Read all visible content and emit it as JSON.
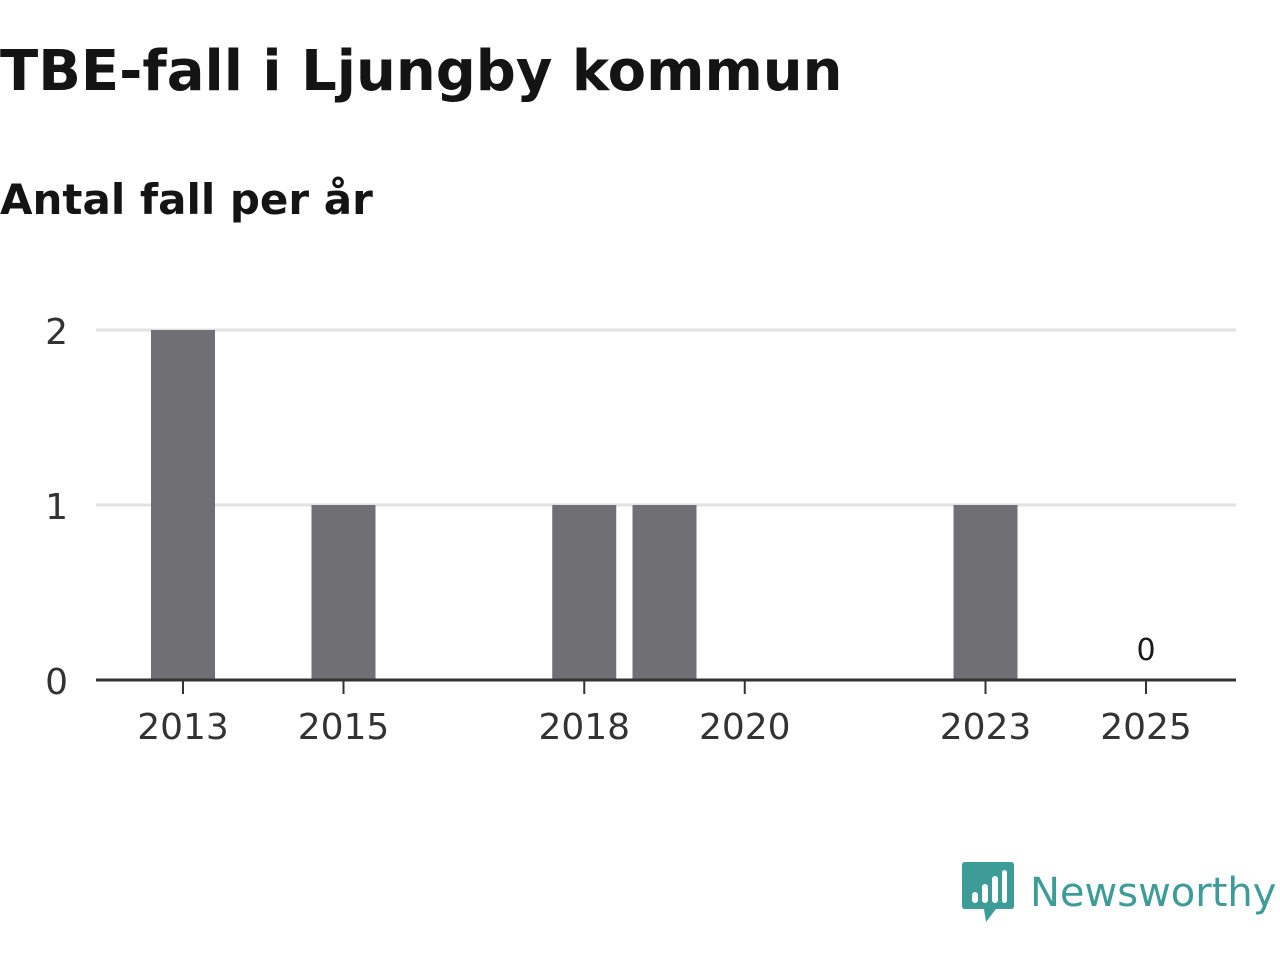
{
  "title": "TBE-fall i Ljungby kommun",
  "subtitle": "Antal fall per år",
  "brand": {
    "name": "Newsworthy",
    "icon": "newsworthy-logo-icon",
    "color": "#3d9c97"
  },
  "colors": {
    "bar": "#706f74",
    "grid": "#e2e2e2",
    "axis": "#333333",
    "text": "#333333",
    "title": "#141414"
  },
  "chart_data": {
    "type": "bar",
    "title": "TBE-fall i Ljungby kommun",
    "subtitle": "Antal fall per år",
    "xlabel": "",
    "ylabel": "",
    "x": [
      2013,
      2014,
      2015,
      2016,
      2017,
      2018,
      2019,
      2020,
      2021,
      2022,
      2023,
      2024,
      2025
    ],
    "values": [
      2,
      0,
      1,
      0,
      0,
      1,
      1,
      0,
      0,
      0,
      1,
      0,
      0
    ],
    "xtick_labels": [
      "2013",
      "2015",
      "2018",
      "2020",
      "2023",
      "2025"
    ],
    "ytick_labels": [
      "0",
      "1",
      "2"
    ],
    "ylim": [
      0,
      2
    ],
    "grid": true,
    "legend": false,
    "annotations": [
      {
        "x": 2025,
        "text": "0"
      }
    ]
  }
}
